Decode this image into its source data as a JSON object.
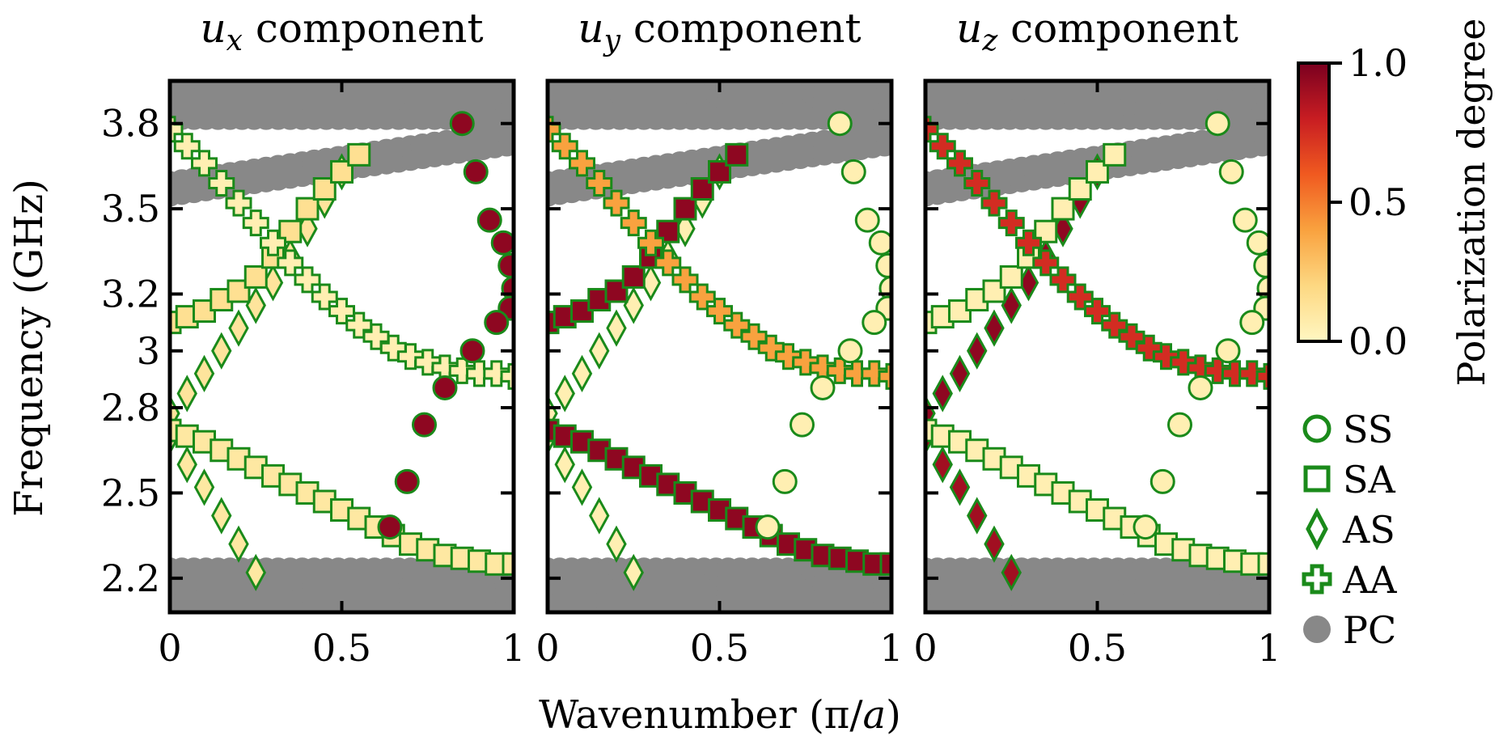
{
  "figure": {
    "x_axis_label": "Wavenumber (π/a)",
    "y_axis_label": "Frequency (GHz)",
    "colorbar": {
      "label": "Polarization degree",
      "ticks": [
        "0.0",
        "0.5",
        "1.0"
      ],
      "range": [
        0,
        1
      ],
      "colors": [
        "#fff7c2",
        "#fdd882",
        "#f9a23f",
        "#f05a20",
        "#c81d22",
        "#7a0020"
      ]
    },
    "legend": [
      {
        "marker": "circle",
        "label": "SS"
      },
      {
        "marker": "square",
        "label": "SA"
      },
      {
        "marker": "diamond",
        "label": "AS"
      },
      {
        "marker": "plus",
        "label": "AA"
      },
      {
        "marker": "filled-circle",
        "label": "PC"
      }
    ],
    "marker_edge_color": "#1a8a1a",
    "pc_color": "#888888"
  },
  "chart_data": [
    {
      "type": "scatter",
      "title_var": "u",
      "title_sub": "x",
      "title_rest": "component",
      "xlabel": "Wavenumber (π/a)",
      "ylabel": "Frequency (GHz)",
      "xlim": [
        0,
        1
      ],
      "ylim": [
        2.08,
        3.95
      ],
      "xticks": [
        "0",
        "0.5",
        "1"
      ],
      "yticks": [
        "2.2",
        "2.5",
        "2.8",
        "3",
        "3.2",
        "3.5",
        "3.8"
      ],
      "polarization": {
        "SS": 0.95,
        "SA_upper": 0.15,
        "SA_lower": 0.1,
        "AS_upper": 0.12,
        "AS_lower": 0.1,
        "AA": 0.05
      }
    },
    {
      "type": "scatter",
      "title_var": "u",
      "title_sub": "y",
      "title_rest": "component",
      "xlabel": "Wavenumber (π/a)",
      "ylabel": "Frequency (GHz)",
      "xlim": [
        0,
        1
      ],
      "ylim": [
        2.08,
        3.95
      ],
      "xticks": [
        "0",
        "0.5",
        "1"
      ],
      "yticks": [
        "2.2",
        "2.5",
        "2.8",
        "3",
        "3.2",
        "3.5",
        "3.8"
      ],
      "polarization": {
        "SS": 0.05,
        "SA_upper": 0.95,
        "SA_lower": 0.95,
        "AS_upper": 0.05,
        "AS_lower": 0.05,
        "AA": 0.4
      }
    },
    {
      "type": "scatter",
      "title_var": "u",
      "title_sub": "z",
      "title_rest": "component",
      "xlabel": "Wavenumber (π/a)",
      "ylabel": "Frequency (GHz)",
      "xlim": [
        0,
        1
      ],
      "ylim": [
        2.08,
        3.95
      ],
      "xticks": [
        "0",
        "0.5",
        "1"
      ],
      "yticks": [
        "2.2",
        "2.5",
        "2.8",
        "3",
        "3.2",
        "3.5",
        "3.8"
      ],
      "polarization": {
        "SS": 0.05,
        "SA_upper": 0.05,
        "SA_lower": 0.05,
        "AS_upper": 0.95,
        "AS_lower": 0.9,
        "AA": 0.75
      }
    }
  ],
  "bands": {
    "SS": {
      "k": [
        0.85,
        0.89,
        0.93,
        0.97,
        0.99,
        1.0,
        0.99,
        0.95,
        0.88,
        0.8,
        0.74,
        0.69,
        0.64
      ],
      "f": [
        3.8,
        3.63,
        3.46,
        3.38,
        3.3,
        3.22,
        3.15,
        3.1,
        3.0,
        2.87,
        2.74,
        2.54,
        2.38
      ]
    },
    "SA_upper": {
      "k": [
        0.0,
        0.05,
        0.1,
        0.15,
        0.2,
        0.25,
        0.3,
        0.35,
        0.4,
        0.45,
        0.5,
        0.55
      ],
      "f": [
        3.1,
        3.12,
        3.14,
        3.18,
        3.21,
        3.26,
        3.33,
        3.42,
        3.5,
        3.57,
        3.63,
        3.69
      ]
    },
    "SA_lower": {
      "k": [
        0.0,
        0.05,
        0.1,
        0.15,
        0.2,
        0.25,
        0.3,
        0.35,
        0.4,
        0.45,
        0.5,
        0.55,
        0.6,
        0.65,
        0.7,
        0.75,
        0.8,
        0.85,
        0.9,
        0.95,
        1.0
      ],
      "f": [
        2.72,
        2.7,
        2.68,
        2.65,
        2.62,
        2.59,
        2.56,
        2.53,
        2.5,
        2.47,
        2.44,
        2.41,
        2.38,
        2.35,
        2.32,
        2.3,
        2.28,
        2.27,
        2.26,
        2.25,
        2.25
      ]
    },
    "AS_upper": {
      "k": [
        0.0,
        0.05,
        0.1,
        0.15,
        0.2,
        0.25,
        0.3,
        0.35,
        0.4,
        0.45,
        0.5
      ],
      "f": [
        2.78,
        2.85,
        2.92,
        3.0,
        3.08,
        3.16,
        3.24,
        3.33,
        3.43,
        3.53,
        3.63
      ]
    },
    "AS_lower": {
      "k": [
        0.0,
        0.05,
        0.1,
        0.15,
        0.2,
        0.25
      ],
      "f": [
        2.7,
        2.6,
        2.52,
        2.42,
        2.32,
        2.22
      ]
    },
    "AA": {
      "k": [
        0.0,
        0.05,
        0.1,
        0.15,
        0.2,
        0.25,
        0.3,
        0.35,
        0.4,
        0.45,
        0.5,
        0.55,
        0.6,
        0.65,
        0.7,
        0.75,
        0.8,
        0.85,
        0.9,
        0.95,
        1.0
      ],
      "f": [
        3.78,
        3.72,
        3.66,
        3.59,
        3.52,
        3.45,
        3.38,
        3.31,
        3.25,
        3.19,
        3.14,
        3.09,
        3.05,
        3.01,
        2.98,
        2.96,
        2.94,
        2.93,
        2.92,
        2.92,
        2.91
      ]
    },
    "PC_top": {
      "k_start": 0.0,
      "k_end": 1.0,
      "f_min": 3.82,
      "f_max": 3.95
    },
    "PC_mid": {
      "k_start": 0.0,
      "k_end": 1.0,
      "f_start": 3.55,
      "f_end": 3.73
    },
    "PC_bottom": {
      "k_start": 0.0,
      "k_end": 1.0,
      "f_min": 2.08,
      "f_max": 2.23
    }
  }
}
